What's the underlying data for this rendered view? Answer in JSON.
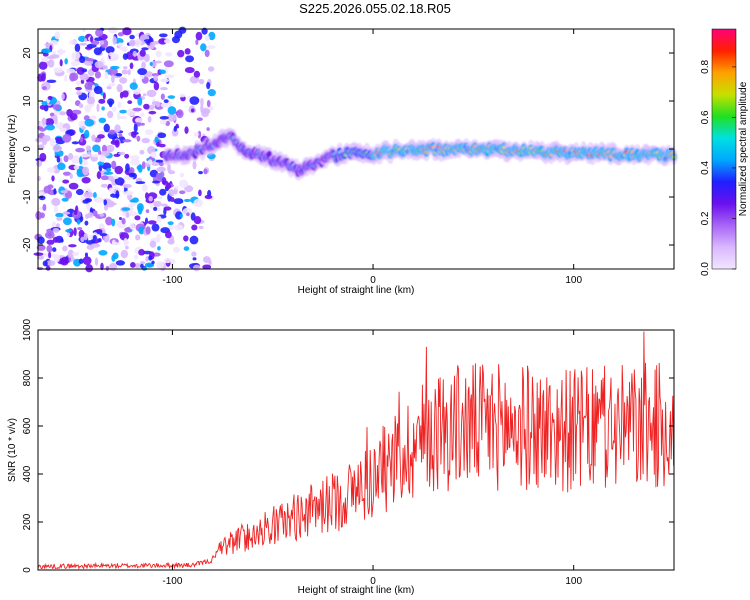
{
  "title": "S225.2026.055.02.18.R05",
  "colors": {
    "snr_line": "#ee2222",
    "axis": "#000000",
    "colormap": [
      "#ffffff",
      "#f2e6ff",
      "#d9b8ff",
      "#a865f5",
      "#6a10ee",
      "#2020ff",
      "#00a8ff",
      "#00e0e0",
      "#20e020",
      "#c8e000",
      "#ffa000",
      "#ff2000",
      "#ff0077"
    ]
  },
  "chart_data": [
    {
      "type": "heatmap",
      "xlabel": "Height of straight line (km)",
      "ylabel": "Frequency (Hz)",
      "xlim": [
        -167,
        150
      ],
      "ylim": [
        -25,
        25
      ],
      "xticks": [
        "-100",
        "0",
        "100"
      ],
      "yticks": [
        "20",
        "10",
        "0",
        "-10",
        "-20"
      ],
      "xtick_values": [
        -100,
        0,
        100
      ],
      "ytick_values": [
        20,
        10,
        0,
        -10,
        -20
      ],
      "colorbar": {
        "label": "Normalized spectral amplitude",
        "range": [
          0,
          0.95
        ],
        "ticks": [
          "0.0",
          "0.2",
          "0.4",
          "0.6",
          "0.8"
        ],
        "tick_values": [
          0,
          0.2,
          0.4,
          0.6,
          0.8
        ]
      },
      "ridge": {
        "description_points": [
          [
            -100,
            -1.5
          ],
          [
            -90,
            -1
          ],
          [
            -80,
            1
          ],
          [
            -72,
            3
          ],
          [
            -65,
            0
          ],
          [
            -55,
            -1.5
          ],
          [
            -45,
            -3
          ],
          [
            -38,
            -4.5
          ],
          [
            -30,
            -3.5
          ],
          [
            -20,
            -1.5
          ],
          [
            -10,
            -0.5
          ],
          [
            0,
            -1
          ],
          [
            10,
            -0.5
          ],
          [
            20,
            -0.2
          ],
          [
            40,
            0
          ],
          [
            60,
            0
          ],
          [
            80,
            -0.5
          ],
          [
            100,
            -0.8
          ],
          [
            120,
            -1
          ],
          [
            140,
            -1.3
          ],
          [
            150,
            -1.5
          ]
        ]
      },
      "noise_region_x": [
        -167,
        -80
      ]
    },
    {
      "type": "line",
      "xlabel": "Height of straight line (km)",
      "ylabel": "SNR (10 * v/v)",
      "xlim": [
        -167,
        150
      ],
      "ylim": [
        0,
        1000
      ],
      "xticks": [
        "-100",
        "0",
        "100"
      ],
      "yticks": [
        "0",
        "200",
        "400",
        "600",
        "800",
        "1000"
      ],
      "xtick_values": [
        -100,
        0,
        100
      ],
      "ytick_values": [
        0,
        200,
        400,
        600,
        800,
        1000
      ],
      "envelope": [
        [
          -167,
          15
        ],
        [
          -90,
          20
        ],
        [
          -80,
          40
        ],
        [
          -75,
          100
        ],
        [
          -60,
          150
        ],
        [
          -45,
          200
        ],
        [
          -30,
          250
        ],
        [
          -15,
          300
        ],
        [
          0,
          380
        ],
        [
          10,
          450
        ],
        [
          20,
          520
        ],
        [
          30,
          580
        ],
        [
          40,
          600
        ],
        [
          60,
          600
        ],
        [
          80,
          590
        ],
        [
          100,
          580
        ],
        [
          120,
          590
        ],
        [
          150,
          600
        ]
      ],
      "series": [
        {
          "name": "SNR"
        }
      ]
    }
  ]
}
